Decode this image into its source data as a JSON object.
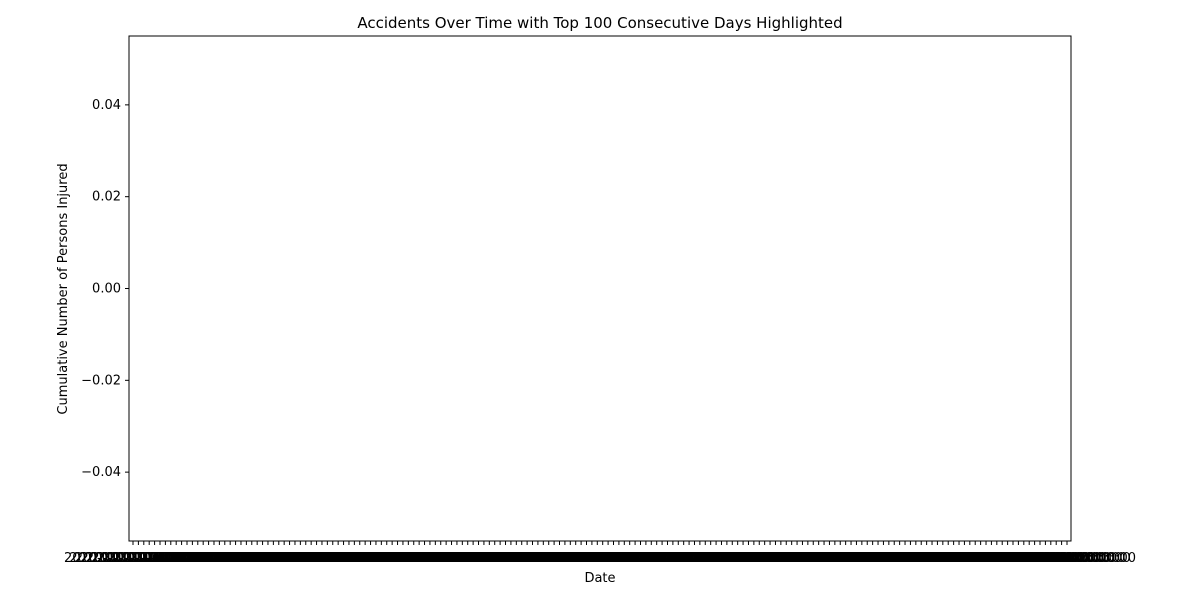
{
  "chart_data": {
    "type": "line",
    "title": "Accidents Over Time with Top 100 Consecutive Days Highlighted",
    "xlabel": "Date",
    "ylabel": "Cumulative Number of Persons Injured",
    "ylim": [
      -0.055,
      0.055
    ],
    "yticks": [
      "0.04",
      "0.02",
      "0.00",
      "−0.02",
      "−0.04"
    ],
    "ytick_values": [
      0.04,
      0.02,
      0.0,
      -0.02,
      -0.04
    ],
    "xtick_count": 174,
    "xtick_label_text": "2020-01-01 00:00:00",
    "series": [],
    "grid": false,
    "legend": "none"
  }
}
